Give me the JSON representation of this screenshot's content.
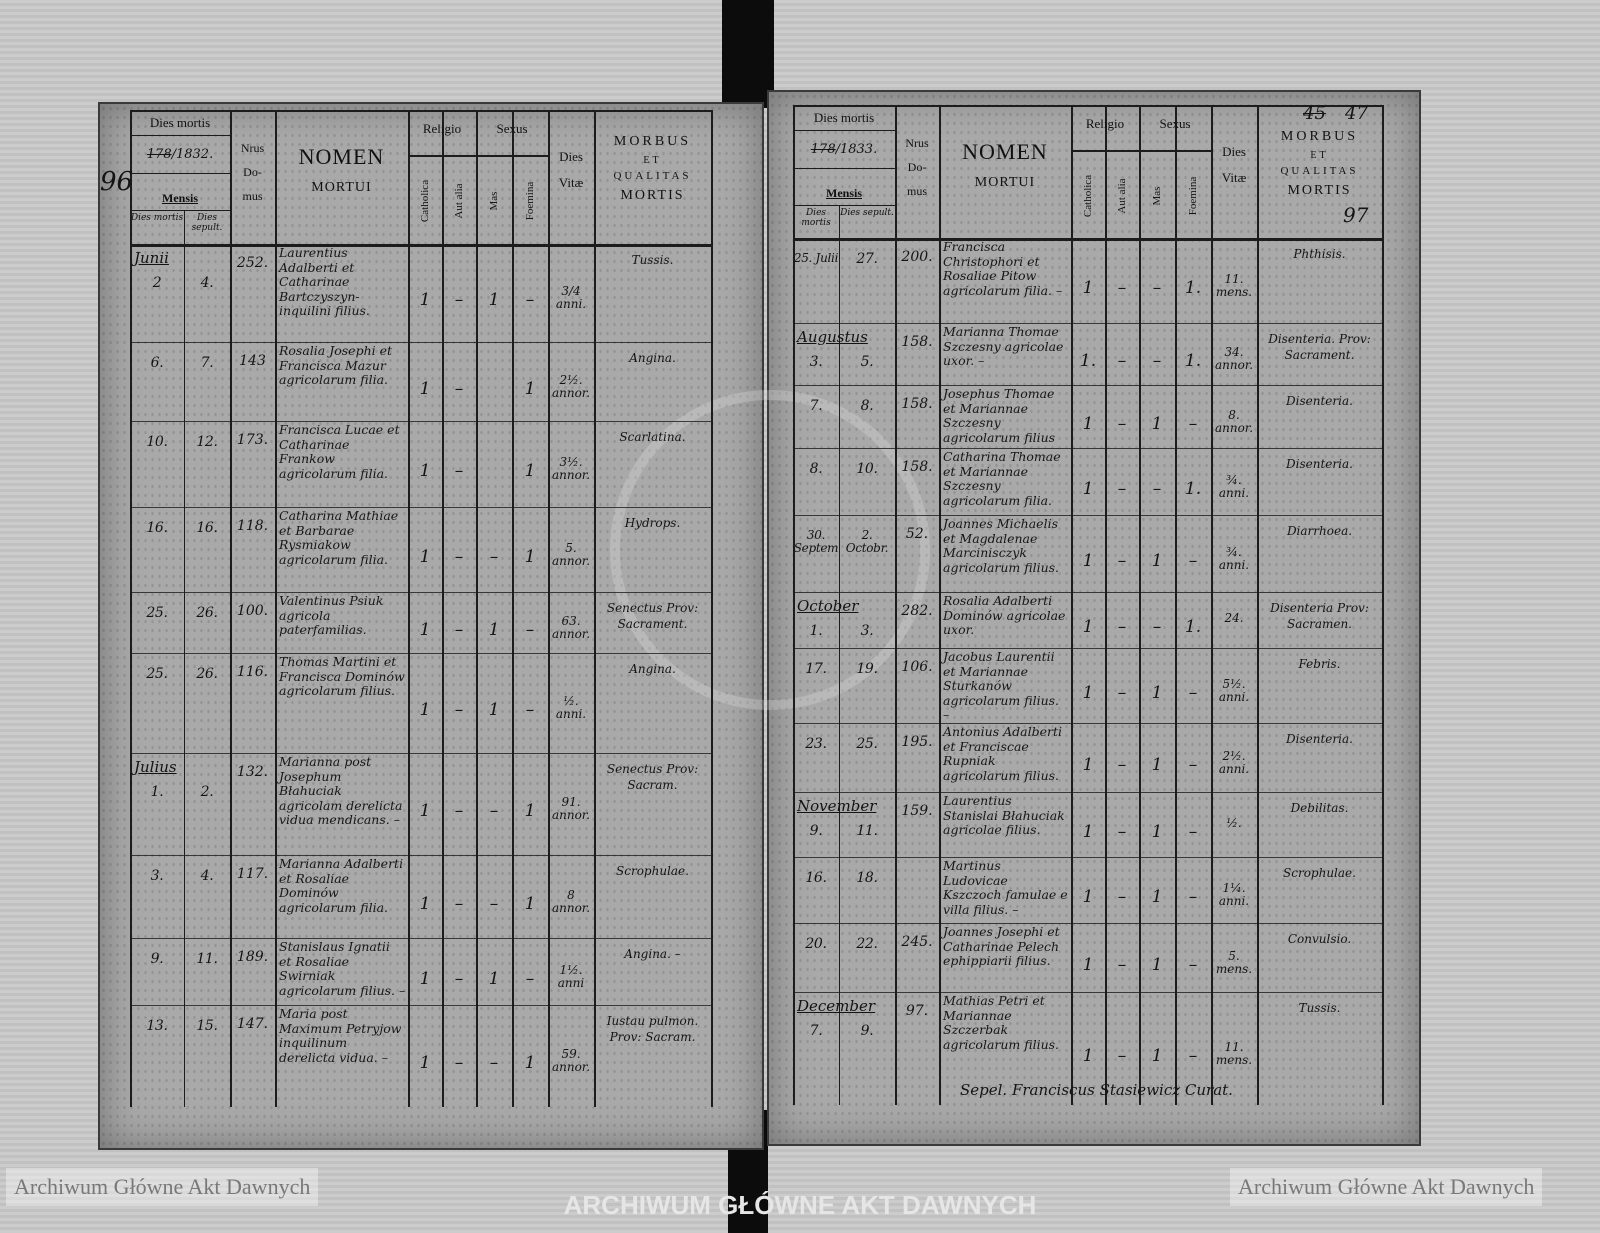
{
  "header": {
    "dies_mortis": "Dies mortis",
    "year_struck": "178",
    "mensis": "Mensis",
    "dies_mortis_sub": "Dies mortis",
    "dies_sepult_sub": "Dies sepult.",
    "nrus": "Nrus",
    "domus_1": "Do-",
    "domus_2": "mus",
    "nomen": "NOMEN",
    "mortui": "MORTUI",
    "religio": "Religio",
    "sexus": "Sexus",
    "catholica": "Catholica",
    "aut_alia": "Aut alia",
    "mas": "Mas",
    "foemina": "Foemina",
    "dies": "Dies",
    "vitae": "Vitæ",
    "morbus": "MORBUS",
    "et": "ET",
    "qualitas": "QUALITAS",
    "mortis": "MORTIS"
  },
  "left_page": {
    "page_number": "96",
    "year": "/1832.",
    "entries": [
      {
        "month": "Junii",
        "died": "2",
        "buried": "4.",
        "house": "252.",
        "name": "Laurentius Adalberti et Catharinae Bartczyszyn-inquilini filius.",
        "catholica": "1",
        "aut_alia": "–",
        "mas": "1",
        "foemina": "–",
        "age": "3/4 anni.",
        "cause": "Tussis."
      },
      {
        "month": "",
        "died": "6.",
        "buried": "7.",
        "house": "143",
        "name": "Rosalia Josephi et Francisca Mazur agricolarum filia.",
        "catholica": "1",
        "aut_alia": "–",
        "mas": "",
        "foemina": "1",
        "age": "2½. annor.",
        "cause": "Angina."
      },
      {
        "month": "",
        "died": "10.",
        "buried": "12.",
        "house": "173.",
        "name": "Francisca Lucae et Catharinae Frankow agricolarum filia.",
        "catholica": "1",
        "aut_alia": "–",
        "mas": "",
        "foemina": "1",
        "age": "3½. annor.",
        "cause": "Scarlatina."
      },
      {
        "month": "",
        "died": "16.",
        "buried": "16.",
        "house": "118.",
        "name": "Catharina Mathiae et Barbarae Rysmiakow agricolarum filia.",
        "catholica": "1",
        "aut_alia": "–",
        "mas": "–",
        "foemina": "1",
        "age": "5. annor.",
        "cause": "Hydrops."
      },
      {
        "month": "",
        "died": "25.",
        "buried": "26.",
        "house": "100.",
        "name": "Valentinus Psiuk agricola paterfamilias.",
        "catholica": "1",
        "aut_alia": "–",
        "mas": "1",
        "foemina": "–",
        "age": "63. annor.",
        "cause": "Senectus Prov: Sacrament."
      },
      {
        "month": "",
        "died": "25.",
        "buried": "26.",
        "house": "116.",
        "name": "Thomas Martini et Francisca Dominów agricolarum filius.",
        "catholica": "1",
        "aut_alia": "–",
        "mas": "1",
        "foemina": "–",
        "age": "½. anni.",
        "cause": "Angina."
      },
      {
        "month": "Julius",
        "died": "1.",
        "buried": "2.",
        "house": "132.",
        "name": "Marianna post Josephum Błahuciak agricolam derelicta vidua mendicans. –",
        "catholica": "1",
        "aut_alia": "–",
        "mas": "–",
        "foemina": "1",
        "age": "91. annor.",
        "cause": "Senectus Prov: Sacram."
      },
      {
        "month": "",
        "died": "3.",
        "buried": "4.",
        "house": "117.",
        "name": "Marianna Adalberti et Rosaliae Dominów agricolarum filia.",
        "catholica": "1",
        "aut_alia": "–",
        "mas": "–",
        "foemina": "1",
        "age": "8 annor.",
        "cause": "Scrophulae."
      },
      {
        "month": "",
        "died": "9.",
        "buried": "11.",
        "house": "189.",
        "name": "Stanislaus Ignatii et Rosaliae Swirniak agricolarum filius. –",
        "catholica": "1",
        "aut_alia": "–",
        "mas": "1",
        "foemina": "–",
        "age": "1½. anni",
        "cause": "Angina. –"
      },
      {
        "month": "",
        "died": "13.",
        "buried": "15.",
        "house": "147.",
        "name": "Maria post Maximum Petryjow inquilinum derelicta vidua. –",
        "catholica": "1",
        "aut_alia": "–",
        "mas": "–",
        "foemina": "1",
        "age": "59. annor.",
        "cause": "Iustau pulmon. Prov: Sacram."
      }
    ]
  },
  "right_page": {
    "page_number_struck": "45",
    "page_number": "47",
    "folio": "97",
    "year": "/1833.",
    "entries": [
      {
        "month": "",
        "died": "25. Julii",
        "buried": "27.",
        "house": "200.",
        "name": "Francisca Christophori et Rosaliae Pitow agricolarum filia. –",
        "catholica": "1",
        "aut_alia": "–",
        "mas": "–",
        "foemina": "1.",
        "age": "11. mens.",
        "cause": "Phthisis."
      },
      {
        "month": "Augustus",
        "died": "3.",
        "buried": "5.",
        "house": "158.",
        "name": "Marianna Thomae Szczesny agricolae uxor. –",
        "catholica": "1.",
        "aut_alia": "–",
        "mas": "–",
        "foemina": "1.",
        "age": "34. annor.",
        "cause": "Disenteria. Prov: Sacrament."
      },
      {
        "month": "",
        "died": "7.",
        "buried": "8.",
        "house": "158.",
        "name": "Josephus Thomae et Mariannae Szczesny agricolarum filius",
        "catholica": "1",
        "aut_alia": "–",
        "mas": "1",
        "foemina": "–",
        "age": "8. annor.",
        "cause": "Disenteria."
      },
      {
        "month": "",
        "died": "8.",
        "buried": "10.",
        "house": "158.",
        "name": "Catharina Thomae et Mariannae Szczesny agricolarum filia.",
        "catholica": "1",
        "aut_alia": "–",
        "mas": "–",
        "foemina": "1.",
        "age": "¾. anni.",
        "cause": "Disenteria."
      },
      {
        "month": "",
        "died": "30. Septem",
        "buried": "2. Octobr.",
        "house": "52.",
        "name": "Joannes Michaelis et Magdalenae Marcinisczyk agricolarum filius.",
        "catholica": "1",
        "aut_alia": "–",
        "mas": "1",
        "foemina": "–",
        "age": "¾. anni.",
        "cause": "Diarrhoea."
      },
      {
        "month": "October",
        "died": "1.",
        "buried": "3.",
        "house": "282.",
        "name": "Rosalia Adalberti Dominów agricolae uxor.",
        "catholica": "1",
        "aut_alia": "–",
        "mas": "–",
        "foemina": "1.",
        "age": "24.",
        "cause": "Disenteria Prov: Sacramen."
      },
      {
        "month": "",
        "died": "17.",
        "buried": "19.",
        "house": "106.",
        "name": "Jacobus Laurentii et Mariannae Sturkanów agricolarum filius. –",
        "catholica": "1",
        "aut_alia": "–",
        "mas": "1",
        "foemina": "–",
        "age": "5½. anni.",
        "cause": "Febris."
      },
      {
        "month": "",
        "died": "23.",
        "buried": "25.",
        "house": "195.",
        "name": "Antonius Adalberti et Franciscae Rupniak agricolarum filius.",
        "catholica": "1",
        "aut_alia": "–",
        "mas": "1",
        "foemina": "–",
        "age": "2½. anni.",
        "cause": "Disenteria."
      },
      {
        "month": "November",
        "died": "9.",
        "buried": "11.",
        "house": "159.",
        "name": "Laurentius Stanislai Błahuciak agricolae filius.",
        "catholica": "1",
        "aut_alia": "–",
        "mas": "1",
        "foemina": "–",
        "age": "½.",
        "cause": "Debilitas."
      },
      {
        "month": "",
        "died": "16.",
        "buried": "18.",
        "house": "",
        "name": "Martinus Ludovicae Kszczoch famulae e villa filius. –",
        "catholica": "1",
        "aut_alia": "–",
        "mas": "1",
        "foemina": "–",
        "age": "1¼. anni.",
        "cause": "Scrophulae."
      },
      {
        "month": "",
        "died": "20.",
        "buried": "22.",
        "house": "245.",
        "name": "Joannes Josephi et Catharinae Pelech ephippiarii filius.",
        "catholica": "1",
        "aut_alia": "–",
        "mas": "1",
        "foemina": "–",
        "age": "5. mens.",
        "cause": "Convulsio."
      },
      {
        "month": "December",
        "died": "7.",
        "buried": "9.",
        "house": "97.",
        "name": "Mathias Petri et Mariannae Szczerbak agricolarum filius.",
        "catholica": "1",
        "aut_alia": "–",
        "mas": "1",
        "foemina": "–",
        "age": "11. mens.",
        "cause": "Tussis."
      }
    ],
    "signature": "Sepel. Franciscus Stasiewicz Curat."
  },
  "watermark": {
    "text": "Archiwum Główne Akt Dawnych",
    "stamp": "ARCHIWUM GŁÓWNE AKT DAWNYCH"
  },
  "colors": {
    "paper": "#a9a9a9",
    "ink": "#161616",
    "background": "#c9c9c9",
    "spine": "#0c0c0c"
  }
}
